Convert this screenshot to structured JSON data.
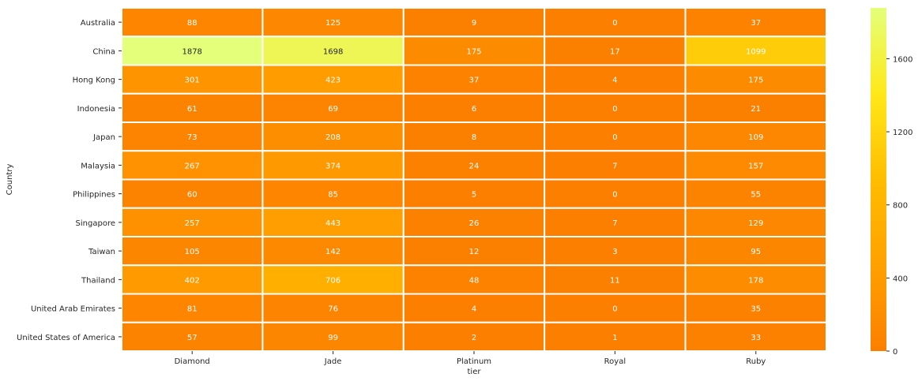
{
  "chart_data": {
    "type": "heatmap",
    "title": "",
    "xlabel": "tier",
    "ylabel": "Country",
    "x_categories": [
      "Diamond",
      "Jade",
      "Platinum",
      "Royal",
      "Ruby"
    ],
    "y_categories": [
      "Australia",
      "China",
      "Hong Kong",
      "Indonesia",
      "Japan",
      "Malaysia",
      "Philippines",
      "Singapore",
      "Taiwan",
      "Thailand",
      "United Arab Emirates",
      "United States of America"
    ],
    "values": [
      [
        88,
        125,
        9,
        0,
        37
      ],
      [
        1878,
        1698,
        175,
        17,
        1099
      ],
      [
        301,
        423,
        37,
        4,
        175
      ],
      [
        61,
        69,
        6,
        0,
        21
      ],
      [
        73,
        208,
        8,
        0,
        109
      ],
      [
        267,
        374,
        24,
        7,
        157
      ],
      [
        60,
        85,
        5,
        0,
        55
      ],
      [
        257,
        443,
        26,
        7,
        129
      ],
      [
        105,
        142,
        12,
        3,
        95
      ],
      [
        402,
        706,
        48,
        11,
        178
      ],
      [
        81,
        76,
        4,
        0,
        35
      ],
      [
        57,
        99,
        2,
        1,
        33
      ]
    ],
    "colormap": "Wistia_r",
    "value_range": [
      0,
      1878
    ],
    "colorbar_ticks": [
      0,
      400,
      800,
      1200,
      1600
    ],
    "annotated": true,
    "cell_line_color": "#ffffff"
  }
}
